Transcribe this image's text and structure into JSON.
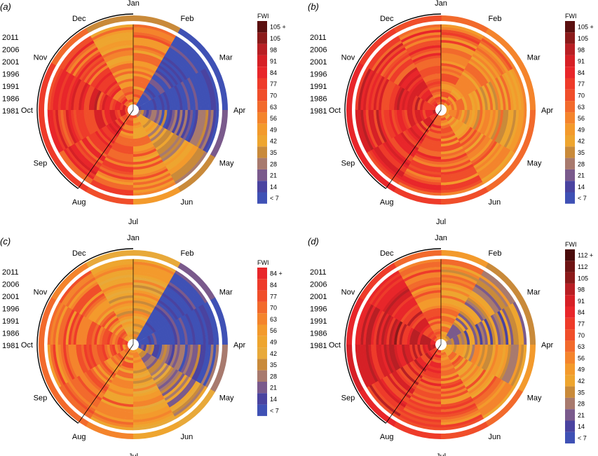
{
  "chart_data": [
    {
      "panel_label": "(a)",
      "type": "heatmap",
      "months": [
        "Jan",
        "Feb",
        "Mar",
        "Apr",
        "May",
        "Jun",
        "Jul",
        "Aug",
        "Sep",
        "Oct",
        "Nov",
        "Dec"
      ],
      "year_labels": [
        "2011",
        "2006",
        "2001",
        "1996",
        "1991",
        "1986",
        "1981"
      ],
      "legend_title": "FWI",
      "legend_labels": [
        "105 +",
        "105",
        "98",
        "91",
        "84",
        "77",
        "70",
        "63",
        "56",
        "49",
        "42",
        "35",
        "28",
        "21",
        "14",
        "< 7"
      ],
      "legend_colors": [
        "#5a0f0f",
        "#8b1a1a",
        "#b81f24",
        "#d62026",
        "#e8262a",
        "#ee3b2a",
        "#f04e2a",
        "#f26a2c",
        "#f4842c",
        "#f39a2c",
        "#eea52f",
        "#c98a3a",
        "#a87a6e",
        "#7a5a8c",
        "#4a43a0",
        "#3f51b5"
      ],
      "monthly_mean_fwi": [
        55,
        8,
        6,
        20,
        38,
        55,
        65,
        75,
        80,
        80,
        70,
        55
      ],
      "outer_ring_fwi": [
        35,
        7,
        7,
        21,
        35,
        49,
        70,
        77,
        77,
        77,
        63,
        35
      ]
    },
    {
      "panel_label": "(b)",
      "type": "heatmap",
      "months": [
        "Jan",
        "Feb",
        "Mar",
        "Apr",
        "May",
        "Jun",
        "Jul",
        "Aug",
        "Sep",
        "Oct",
        "Nov",
        "Dec"
      ],
      "year_labels": [
        "2011",
        "2006",
        "2001",
        "1996",
        "1991",
        "1986",
        "1981"
      ],
      "legend_title": "FWI",
      "legend_labels": [
        "105 +",
        "105",
        "98",
        "91",
        "84",
        "77",
        "70",
        "63",
        "56",
        "49",
        "42",
        "35",
        "28",
        "21",
        "14",
        "< 7"
      ],
      "legend_colors": [
        "#5a0f0f",
        "#8b1a1a",
        "#b81f24",
        "#d62026",
        "#e8262a",
        "#ee3b2a",
        "#f04e2a",
        "#f26a2c",
        "#f4842c",
        "#f39a2c",
        "#eea52f",
        "#c98a3a",
        "#a87a6e",
        "#7a5a8c",
        "#4a43a0",
        "#3f51b5"
      ],
      "monthly_mean_fwi": [
        62,
        55,
        50,
        48,
        55,
        62,
        70,
        78,
        82,
        82,
        78,
        70
      ],
      "outer_ring_fwi": [
        63,
        56,
        56,
        63,
        63,
        70,
        77,
        84,
        84,
        84,
        77,
        70
      ]
    },
    {
      "panel_label": "(c)",
      "type": "heatmap",
      "months": [
        "Jan",
        "Feb",
        "Mar",
        "Apr",
        "May",
        "Jun",
        "Jul",
        "Aug",
        "Sep",
        "Oct",
        "Nov",
        "Dec"
      ],
      "year_labels": [
        "2011",
        "2006",
        "2001",
        "1996",
        "1991",
        "1986",
        "1981"
      ],
      "legend_title": "FWI",
      "legend_labels": [
        "84 +",
        "84",
        "77",
        "70",
        "63",
        "56",
        "49",
        "42",
        "35",
        "28",
        "21",
        "14",
        "< 7"
      ],
      "legend_colors": [
        "#e8262a",
        "#ee3b2a",
        "#f04e2a",
        "#f26a2c",
        "#f4842c",
        "#f39a2c",
        "#eea52f",
        "#e8a93a",
        "#c98a3a",
        "#a87a6e",
        "#7a5a8c",
        "#4a43a0",
        "#3f51b5"
      ],
      "monthly_mean_fwi": [
        50,
        8,
        6,
        20,
        35,
        50,
        60,
        68,
        72,
        72,
        65,
        50
      ],
      "outer_ring_fwi": [
        42,
        21,
        7,
        28,
        42,
        49,
        63,
        70,
        70,
        70,
        63,
        42
      ]
    },
    {
      "panel_label": "(d)",
      "type": "heatmap",
      "months": [
        "Jan",
        "Feb",
        "Mar",
        "Apr",
        "May",
        "Jun",
        "Jul",
        "Aug",
        "Sep",
        "Oct",
        "Nov",
        "Dec"
      ],
      "year_labels": [
        "2011",
        "2006",
        "2001",
        "1996",
        "1991",
        "1986",
        "1981"
      ],
      "legend_title": "FWI",
      "legend_labels": [
        "112 +",
        "112",
        "105",
        "98",
        "91",
        "84",
        "77",
        "70",
        "63",
        "56",
        "49",
        "42",
        "35",
        "28",
        "21",
        "14",
        "< 7"
      ],
      "legend_colors": [
        "#4a0b0b",
        "#6e1414",
        "#8b1a1a",
        "#b81f24",
        "#d62026",
        "#e8262a",
        "#ee3b2a",
        "#f04e2a",
        "#f26a2c",
        "#f4842c",
        "#f39a2c",
        "#eea52f",
        "#c98a3a",
        "#a87a6e",
        "#7a5a8c",
        "#4a43a0",
        "#3f51b5"
      ],
      "monthly_mean_fwi": [
        52,
        35,
        30,
        42,
        55,
        62,
        72,
        82,
        88,
        88,
        80,
        62
      ],
      "outer_ring_fwi": [
        49,
        35,
        35,
        49,
        63,
        70,
        77,
        84,
        91,
        84,
        77,
        63
      ]
    }
  ]
}
